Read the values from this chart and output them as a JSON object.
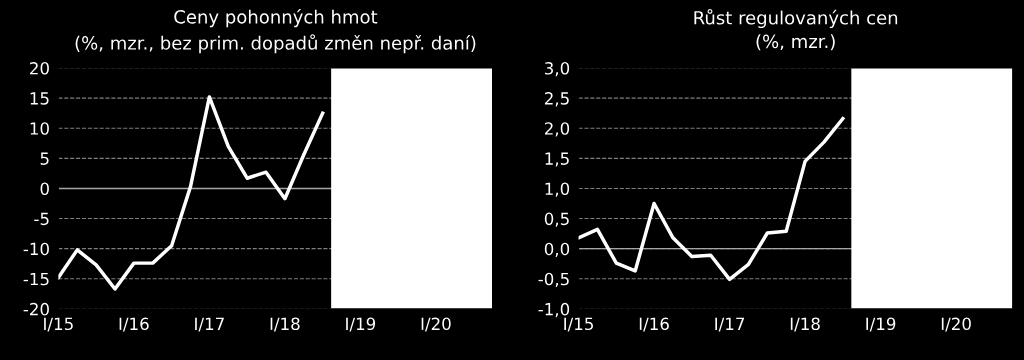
{
  "chart_data": [
    {
      "type": "line",
      "title": "Ceny pohonných hmot",
      "subtitle": "(%, mzr., bez prim. dopadů změn nepř. daní)",
      "categories": [
        "I/15",
        null,
        null,
        null,
        "I/16",
        null,
        null,
        null,
        "I/17",
        null,
        null,
        null,
        "I/18",
        null,
        null,
        null,
        "I/19",
        null,
        null,
        null,
        "I/20",
        null,
        null,
        null
      ],
      "series": [
        {
          "color": "#ffffff",
          "values": [
            -14.8,
            -10.2,
            -12.7,
            -16.7,
            -12.4,
            -12.4,
            -9.5,
            0.3,
            15.2,
            7.0,
            1.7,
            2.7,
            -1.7,
            5.6,
            12.5,
            null,
            null,
            null,
            null,
            null,
            null,
            null,
            null,
            null
          ]
        }
      ],
      "ylim": [
        -20,
        20
      ],
      "yticks": [
        -20,
        -15,
        -10,
        -5,
        0,
        5,
        10,
        15,
        20
      ],
      "grid": "y",
      "marker": "none",
      "line_style": "solid",
      "ref_lines": [
        {
          "axis": "y",
          "value": 0,
          "color": "#a6a6a6"
        }
      ]
    },
    {
      "type": "line",
      "title": "Růst regulovaných cen",
      "subtitle": "(%, mzr.)",
      "categories": [
        "I/15",
        null,
        null,
        null,
        "I/16",
        null,
        null,
        null,
        "I/17",
        null,
        null,
        null,
        "I/18",
        null,
        null,
        null,
        "I/19",
        null,
        null,
        null,
        "I/20",
        null,
        null,
        null
      ],
      "series": [
        {
          "color": "#ffffff",
          "values": [
            0.18,
            0.32,
            -0.24,
            -0.37,
            0.75,
            0.18,
            -0.13,
            -0.11,
            -0.51,
            -0.26,
            0.26,
            0.29,
            1.45,
            1.77,
            2.16,
            null,
            null,
            null,
            null,
            null,
            null,
            null,
            null,
            null
          ]
        }
      ],
      "ylim": [
        -1,
        3
      ],
      "yticks": [
        {
          "value": -1,
          "label": "-1,0"
        },
        {
          "value": -0.5,
          "label": "-0,5"
        },
        {
          "value": 0,
          "label": "0,0"
        },
        {
          "value": 0.5,
          "label": "0,5"
        },
        {
          "value": 1,
          "label": "1,0"
        },
        {
          "value": 1.5,
          "label": "1,5"
        },
        {
          "value": 2,
          "label": "2,0"
        },
        {
          "value": 2.5,
          "label": "2,5"
        },
        {
          "value": 3,
          "label": "3,0"
        }
      ],
      "grid": "y",
      "marker": "none",
      "line_style": "solid",
      "ref_lines": [
        {
          "axis": "y",
          "value": 0,
          "color": "#a6a6a6"
        }
      ]
    }
  ]
}
